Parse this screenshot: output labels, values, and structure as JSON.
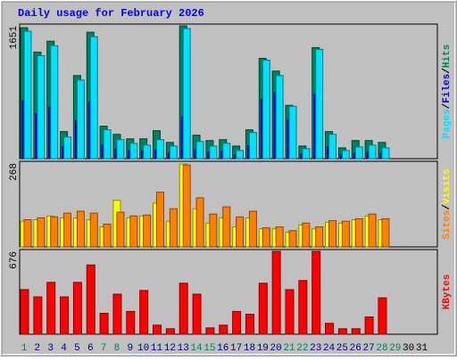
{
  "title": "Daily usage for February 2026",
  "chart_data": [
    {
      "type": "bar",
      "ylim": [
        0,
        1651
      ],
      "yticks": [
        1651
      ],
      "legend_separator": "/",
      "series": [
        {
          "name": "Hits",
          "color": "#00805c",
          "values": [
            1628,
            1325,
            1460,
            337,
            1033,
            1572,
            404,
            303,
            247,
            247,
            348,
            202,
            1651,
            292,
            225,
            236,
            157,
            359,
            1247,
            1089,
            663,
            157,
            1381,
            337,
            135,
            225,
            225,
            202,
            null,
            null,
            null
          ]
        },
        {
          "name": "Files",
          "color": "#0000ff",
          "values": [
            720,
            560,
            640,
            150,
            470,
            700,
            170,
            120,
            100,
            90,
            110,
            70,
            520,
            110,
            80,
            90,
            50,
            160,
            740,
            820,
            480,
            60,
            800,
            150,
            50,
            70,
            80,
            60,
            null,
            null,
            null
          ]
        },
        {
          "name": "Pages",
          "color": "#00e0ff",
          "values": [
            1584,
            1280,
            1404,
            270,
            977,
            1516,
            359,
            236,
            191,
            168,
            236,
            157,
            1617,
            213,
            157,
            191,
            101,
            326,
            1224,
            1033,
            651,
            124,
            1359,
            303,
            101,
            146,
            168,
            135,
            null,
            null,
            null
          ]
        }
      ]
    },
    {
      "type": "bar",
      "ylim": [
        0,
        268
      ],
      "yticks": [
        268
      ],
      "legend_separator": "/",
      "series": [
        {
          "name": "Visits",
          "color": "#ffff00",
          "values": [
            82,
            87,
            99,
            93,
            93,
            87,
            64,
            149,
            93,
            99,
            140,
            82,
            265,
            122,
            76,
            93,
            64,
            93,
            58,
            58,
            47,
            70,
            58,
            79,
            76,
            87,
            99,
            87,
            null,
            null,
            null
          ]
        },
        {
          "name": "Sites",
          "color": "#ff8000",
          "values": [
            87,
            93,
            96,
            108,
            114,
            108,
            73,
            111,
            99,
            102,
            175,
            122,
            262,
            157,
            105,
            128,
            96,
            114,
            61,
            64,
            52,
            76,
            64,
            84,
            82,
            90,
            105,
            90,
            null,
            null,
            null
          ]
        }
      ]
    },
    {
      "type": "bar",
      "ylim": [
        0,
        676
      ],
      "yticks": [
        676
      ],
      "categories": [
        "1",
        "2",
        "3",
        "4",
        "5",
        "6",
        "7",
        "8",
        "9",
        "10",
        "11",
        "12",
        "13",
        "14",
        "15",
        "16",
        "17",
        "18",
        "19",
        "20",
        "21",
        "22",
        "23",
        "24",
        "25",
        "26",
        "27",
        "28",
        "29",
        "30",
        "31"
      ],
      "category_colors": [
        "#00805c",
        "#000080",
        "#000080",
        "#000080",
        "#000080",
        "#000080",
        "#00805c",
        "#00805c",
        "#000080",
        "#000080",
        "#000080",
        "#000080",
        "#000080",
        "#00805c",
        "#00805c",
        "#000080",
        "#000080",
        "#000080",
        "#000080",
        "#000080",
        "#00805c",
        "#00805c",
        "#000080",
        "#000080",
        "#000080",
        "#000080",
        "#000080",
        "#00805c",
        "#00805c",
        "#000000",
        "#000000"
      ],
      "series": [
        {
          "name": "KBytes",
          "color": "#ff0000",
          "values": [
            364,
            305,
            423,
            305,
            423,
            565,
            171,
            327,
            186,
            357,
            74,
            45,
            416,
            327,
            52,
            74,
            186,
            163,
            416,
            676,
            364,
            438,
            676,
            89,
            45,
            45,
            141,
            297,
            null,
            null,
            null
          ]
        }
      ]
    }
  ]
}
